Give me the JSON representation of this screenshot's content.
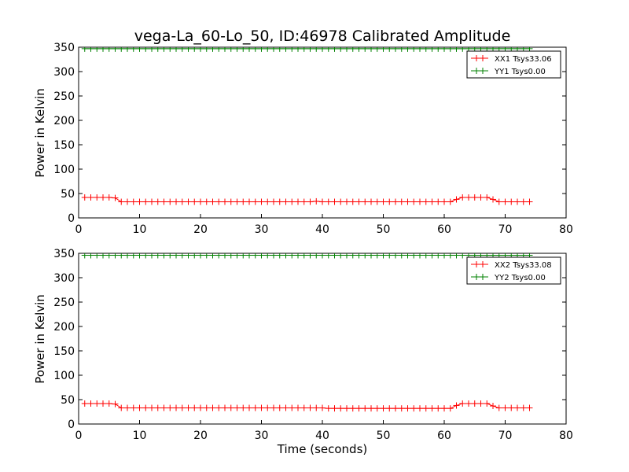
{
  "chart_data": [
    {
      "type": "line",
      "title": "vega-La_60-Lo_50, ID:46978 Calibrated Amplitude",
      "xlabel": "",
      "ylabel": "Power in Kelvin",
      "xlim": [
        0,
        80
      ],
      "ylim": [
        0,
        350
      ],
      "xticks": [
        "0",
        "10",
        "20",
        "30",
        "40",
        "50",
        "60",
        "70",
        "80"
      ],
      "yticks": [
        "0",
        "50",
        "100",
        "150",
        "200",
        "250",
        "300",
        "350"
      ],
      "grid": false,
      "legend": "top-right",
      "marker": "plus",
      "series": [
        {
          "name": "XX1 Tsys33.06",
          "color": "#ff0000",
          "x": [
            1,
            2,
            3,
            4,
            5,
            6,
            7,
            8,
            9,
            10,
            11,
            12,
            13,
            14,
            15,
            16,
            17,
            18,
            19,
            20,
            21,
            22,
            23,
            24,
            25,
            26,
            27,
            28,
            29,
            30,
            31,
            32,
            33,
            34,
            35,
            36,
            37,
            38,
            39,
            40,
            41,
            42,
            43,
            44,
            45,
            46,
            47,
            48,
            49,
            50,
            51,
            52,
            53,
            54,
            55,
            56,
            57,
            58,
            59,
            60,
            61,
            62,
            63,
            64,
            65,
            66,
            67,
            68,
            69,
            70,
            71,
            72,
            73,
            74
          ],
          "y": [
            42,
            42,
            42,
            42,
            42,
            41,
            33,
            33,
            33,
            33,
            33,
            33,
            33,
            33,
            33,
            33,
            33,
            33,
            33,
            33,
            33,
            33,
            33,
            33,
            33,
            33,
            33,
            33,
            33,
            33,
            33,
            33,
            33,
            33,
            33,
            33,
            33,
            33,
            34,
            33,
            33,
            33,
            33,
            33,
            33,
            33,
            33,
            33,
            33,
            33,
            33,
            33,
            33,
            33,
            33,
            33,
            33,
            33,
            33,
            33,
            33,
            38,
            42,
            42,
            42,
            42,
            42,
            38,
            33,
            33,
            33,
            33,
            33,
            33
          ]
        },
        {
          "name": "YY1 Tsys0.00",
          "color": "#008000",
          "x": [
            1,
            2,
            3,
            4,
            5,
            6,
            7,
            8,
            9,
            10,
            11,
            12,
            13,
            14,
            15,
            16,
            17,
            18,
            19,
            20,
            21,
            22,
            23,
            24,
            25,
            26,
            27,
            28,
            29,
            30,
            31,
            32,
            33,
            34,
            35,
            36,
            37,
            38,
            39,
            40,
            41,
            42,
            43,
            44,
            45,
            46,
            47,
            48,
            49,
            50,
            51,
            52,
            53,
            54,
            55,
            56,
            57,
            58,
            59,
            60,
            61,
            62,
            63,
            64,
            65,
            66,
            67,
            68,
            69,
            70,
            71,
            72,
            73,
            74
          ],
          "y": [
            347,
            347,
            347,
            347,
            347,
            347,
            347,
            347,
            347,
            347,
            347,
            347,
            347,
            347,
            347,
            347,
            347,
            347,
            347,
            347,
            347,
            347,
            347,
            347,
            347,
            347,
            347,
            347,
            347,
            347,
            347,
            347,
            347,
            347,
            347,
            347,
            347,
            347,
            347,
            347,
            347,
            347,
            347,
            347,
            347,
            347,
            347,
            347,
            347,
            347,
            347,
            347,
            347,
            347,
            347,
            347,
            347,
            347,
            347,
            347,
            347,
            347,
            347,
            347,
            347,
            347,
            347,
            347,
            347,
            347,
            347,
            347,
            347,
            347
          ]
        }
      ]
    },
    {
      "type": "line",
      "title": "",
      "xlabel": "Time (seconds)",
      "ylabel": "Power in Kelvin",
      "xlim": [
        0,
        80
      ],
      "ylim": [
        0,
        350
      ],
      "xticks": [
        "0",
        "10",
        "20",
        "30",
        "40",
        "50",
        "60",
        "70",
        "80"
      ],
      "yticks": [
        "0",
        "50",
        "100",
        "150",
        "200",
        "250",
        "300",
        "350"
      ],
      "grid": false,
      "legend": "top-right",
      "marker": "plus",
      "series": [
        {
          "name": "XX2 Tsys33.08",
          "color": "#ff0000",
          "x": [
            1,
            2,
            3,
            4,
            5,
            6,
            7,
            8,
            9,
            10,
            11,
            12,
            13,
            14,
            15,
            16,
            17,
            18,
            19,
            20,
            21,
            22,
            23,
            24,
            25,
            26,
            27,
            28,
            29,
            30,
            31,
            32,
            33,
            34,
            35,
            36,
            37,
            38,
            39,
            40,
            41,
            42,
            43,
            44,
            45,
            46,
            47,
            48,
            49,
            50,
            51,
            52,
            53,
            54,
            55,
            56,
            57,
            58,
            59,
            60,
            61,
            62,
            63,
            64,
            65,
            66,
            67,
            68,
            69,
            70,
            71,
            72,
            73,
            74
          ],
          "y": [
            42,
            42,
            42,
            42,
            42,
            41,
            33,
            33,
            33,
            33,
            33,
            33,
            33,
            33,
            33,
            33,
            33,
            33,
            33,
            33,
            33,
            33,
            33,
            33,
            33,
            33,
            33,
            33,
            33,
            33,
            33,
            33,
            33,
            33,
            33,
            33,
            33,
            33,
            33,
            33,
            32,
            32,
            32,
            32,
            32,
            32,
            32,
            32,
            32,
            32,
            32,
            32,
            32,
            32,
            32,
            32,
            32,
            32,
            32,
            32,
            32,
            38,
            42,
            42,
            42,
            42,
            42,
            37,
            33,
            33,
            33,
            33,
            33,
            33
          ]
        },
        {
          "name": "YY2 Tsys0.00",
          "color": "#008000",
          "x": [
            1,
            2,
            3,
            4,
            5,
            6,
            7,
            8,
            9,
            10,
            11,
            12,
            13,
            14,
            15,
            16,
            17,
            18,
            19,
            20,
            21,
            22,
            23,
            24,
            25,
            26,
            27,
            28,
            29,
            30,
            31,
            32,
            33,
            34,
            35,
            36,
            37,
            38,
            39,
            40,
            41,
            42,
            43,
            44,
            45,
            46,
            47,
            48,
            49,
            50,
            51,
            52,
            53,
            54,
            55,
            56,
            57,
            58,
            59,
            60,
            61,
            62,
            63,
            64,
            65,
            66,
            67,
            68,
            69,
            70,
            71,
            72,
            73,
            74
          ],
          "y": [
            346,
            346,
            346,
            346,
            346,
            346,
            346,
            346,
            346,
            346,
            346,
            346,
            346,
            346,
            346,
            346,
            346,
            346,
            346,
            346,
            346,
            346,
            346,
            346,
            346,
            346,
            346,
            346,
            346,
            346,
            346,
            346,
            346,
            346,
            346,
            346,
            346,
            346,
            346,
            346,
            346,
            346,
            346,
            346,
            346,
            346,
            346,
            346,
            346,
            346,
            346,
            346,
            346,
            346,
            346,
            346,
            346,
            346,
            346,
            346,
            346,
            346,
            346,
            346,
            346,
            346,
            346,
            346,
            346,
            346,
            346,
            346,
            346,
            346
          ]
        }
      ]
    }
  ]
}
